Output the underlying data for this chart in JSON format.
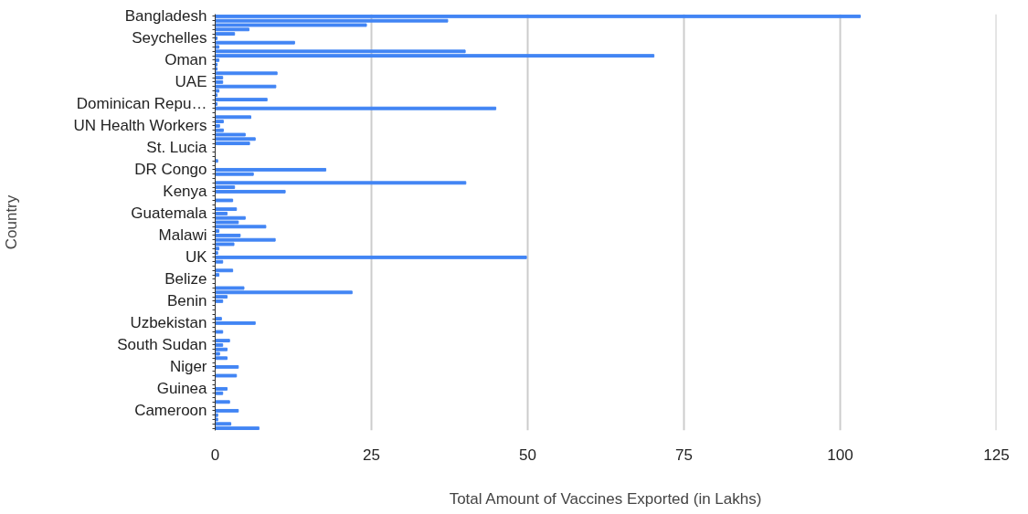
{
  "chart_data": {
    "type": "bar",
    "orientation": "horizontal",
    "xlabel": "Total Amount of Vaccines Exported (in Lakhs)",
    "ylabel": "Country",
    "categories": [
      "Bangladesh",
      null,
      null,
      null,
      null,
      "Seychelles",
      null,
      null,
      null,
      null,
      "Oman",
      null,
      null,
      null,
      null,
      "UAE",
      null,
      null,
      null,
      null,
      "Dominican Repu…",
      null,
      null,
      null,
      null,
      "UN Health Workers",
      null,
      null,
      null,
      null,
      "St. Lucia",
      null,
      null,
      null,
      null,
      "DR Congo",
      null,
      null,
      null,
      null,
      "Kenya",
      null,
      null,
      null,
      null,
      "Guatemala",
      null,
      null,
      null,
      null,
      "Malawi",
      null,
      null,
      null,
      null,
      "UK",
      null,
      null,
      null,
      null,
      "Belize",
      null,
      null,
      null,
      null,
      "Benin",
      null,
      null,
      null,
      null,
      "Uzbekistan",
      null,
      null,
      null,
      null,
      "South Sudan",
      null,
      null,
      null,
      null,
      "Niger",
      null,
      null,
      null,
      null,
      "Guinea",
      null,
      null,
      null,
      null,
      "Cameroon",
      null,
      null,
      null,
      null
    ],
    "values": [
      103.2,
      37.2,
      24.2,
      5.4,
      3.1,
      0.3,
      12.7,
      0.6,
      40,
      70.2,
      0.6,
      0.3,
      0.3,
      9.9,
      1.2,
      1.2,
      9.7,
      0.6,
      0.3,
      8.3,
      0.3,
      44.9,
      0,
      5.7,
      1.3,
      0.7,
      1.3,
      4.8,
      6.4,
      5.5,
      0,
      0,
      0,
      0.4,
      0,
      17.7,
      6.1,
      0,
      40.1,
      3.1,
      11.2,
      0,
      2.8,
      0,
      3.4,
      1.9,
      4.8,
      3.7,
      8.1,
      0.6,
      4.0,
      9.6,
      3.0,
      0.6,
      0.4,
      49.8,
      1.2,
      0,
      2.8,
      0.6,
      0,
      0,
      4.6,
      21.9,
      1.9,
      1.2,
      0,
      0,
      0,
      1.0,
      6.4,
      0,
      1.2,
      0,
      2.3,
      1.2,
      1.9,
      0.7,
      1.9,
      0,
      3.7,
      0,
      3.4,
      0,
      0,
      1.9,
      1.2,
      0,
      2.3,
      0,
      3.7,
      0.4,
      0.4,
      2.5,
      7.0
    ],
    "color": "#4285f4",
    "xlim": [
      0,
      125
    ],
    "xticks": [
      0,
      25,
      50,
      75,
      100,
      125
    ],
    "grid": "x"
  }
}
